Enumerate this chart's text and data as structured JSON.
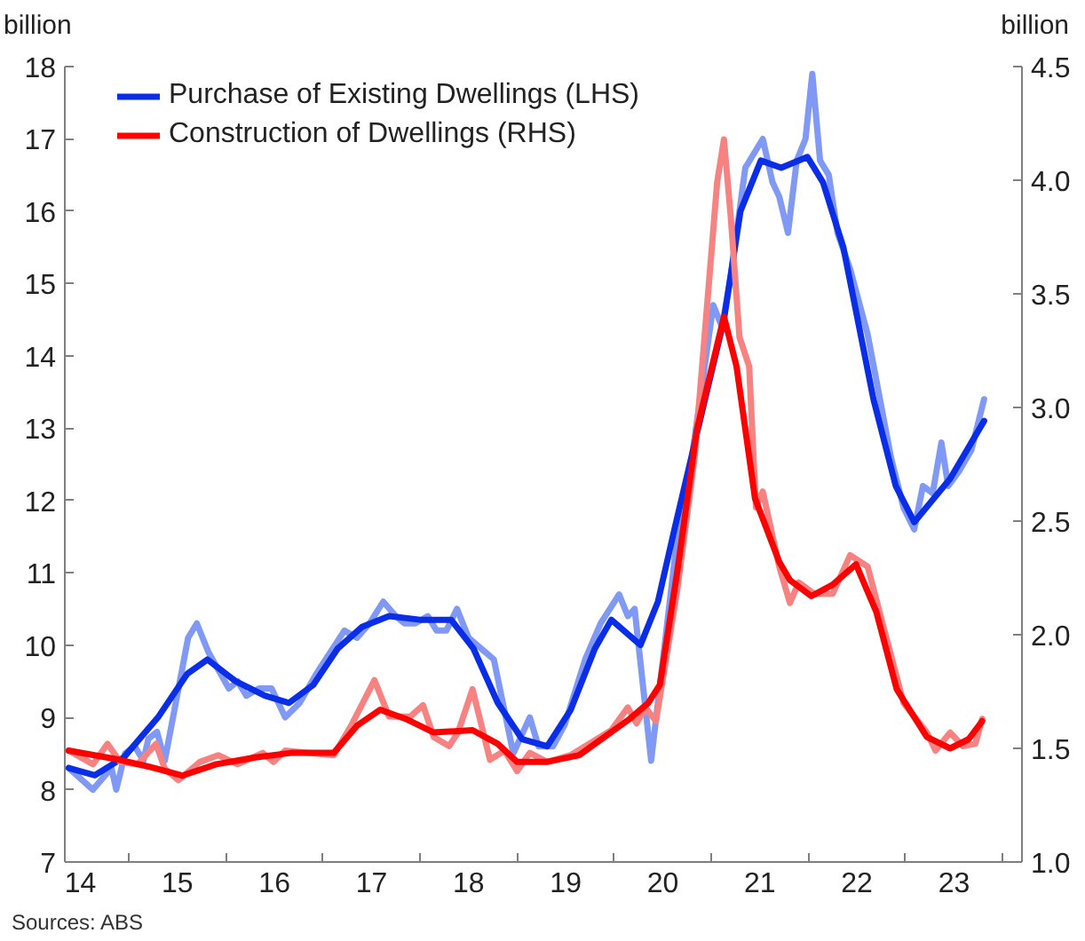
{
  "chart_data": {
    "type": "line",
    "ylabel": "billion",
    "y2label": "billion",
    "annotations": [
      "Sources: ABS"
    ],
    "legend": "top left",
    "xlim": [
      13.84,
      23.7
    ],
    "xticks": [
      14,
      {
        "value": 14.5,
        "label": null
      },
      15,
      {
        "value": 15.5,
        "label": null
      },
      16,
      {
        "value": 16.5,
        "label": null
      },
      17,
      {
        "value": 17.5,
        "label": null
      },
      18,
      {
        "value": 18.5,
        "label": null
      },
      19,
      {
        "value": 19.5,
        "label": null
      },
      20,
      {
        "value": 20.5,
        "label": null
      },
      21,
      {
        "value": 21.5,
        "label": null
      },
      22,
      {
        "value": 22.5,
        "label": null
      },
      23,
      {
        "value": 23.5,
        "label": null
      }
    ],
    "ylim": [
      7,
      18
    ],
    "yticks": [
      7,
      8,
      9,
      10,
      11,
      12,
      13,
      14,
      15,
      16,
      17,
      18
    ],
    "y2lim": [
      1.0,
      4.5
    ],
    "y2ticks": [
      {
        "value": 1.0,
        "label": "1.0"
      },
      1.5,
      {
        "value": 2.0,
        "label": "2.0"
      },
      2.5,
      {
        "value": 3.0,
        "label": "3.0"
      },
      3.5,
      {
        "value": 4.0,
        "label": "4.0"
      },
      4.5
    ],
    "series": [
      {
        "color": "#7f99f5",
        "x": [
          13.88,
          14.13,
          14.32,
          14.37,
          14.46,
          14.56,
          14.65,
          14.7,
          14.79,
          14.87,
          15.11,
          15.2,
          15.32,
          15.53,
          15.62,
          15.71,
          15.84,
          15.97,
          16.11,
          16.26,
          16.43,
          16.72,
          16.85,
          16.98,
          17.12,
          17.25,
          17.34,
          17.45,
          17.58,
          17.67,
          17.77,
          17.88,
          18.0,
          18.26,
          18.46,
          18.63,
          18.72,
          18.87,
          18.99,
          19.2,
          19.36,
          19.55,
          19.64,
          19.71,
          19.88,
          20.15,
          20.3,
          20.52,
          20.61,
          20.7,
          20.85,
          21.03,
          21.13,
          21.2,
          21.29,
          21.38,
          21.47,
          21.54,
          21.62,
          21.71,
          21.8,
          21.93,
          22.11,
          22.35,
          22.48,
          22.59,
          22.68,
          22.78,
          22.87,
          22.94,
          23.05,
          23.18,
          23.31
        ],
        "values": [
          8.3,
          8.0,
          8.3,
          8.0,
          8.5,
          8.6,
          8.4,
          8.7,
          8.8,
          8.4,
          10.1,
          10.3,
          9.9,
          9.4,
          9.5,
          9.3,
          9.4,
          9.4,
          9.0,
          9.2,
          9.6,
          10.2,
          10.1,
          10.3,
          10.6,
          10.4,
          10.3,
          10.3,
          10.4,
          10.2,
          10.2,
          10.5,
          10.1,
          9.8,
          8.5,
          9.0,
          8.6,
          8.6,
          8.9,
          9.8,
          10.3,
          10.7,
          10.4,
          10.5,
          8.4,
          11.5,
          12.6,
          14.7,
          14.4,
          15.1,
          16.6,
          17.0,
          16.4,
          16.2,
          15.7,
          16.7,
          17.0,
          17.9,
          16.7,
          16.5,
          15.7,
          15.2,
          14.3,
          12.6,
          11.9,
          11.6,
          12.2,
          12.1,
          12.8,
          12.2,
          12.4,
          12.7,
          13.4
        ]
      },
      {
        "name": "Purchase of Existing Dwellings (LHS)",
        "color": "#0a2ee8",
        "x": [
          13.88,
          14.15,
          14.45,
          14.8,
          15.1,
          15.31,
          15.6,
          15.9,
          16.15,
          16.4,
          16.65,
          16.9,
          17.18,
          17.5,
          17.82,
          18.05,
          18.3,
          18.55,
          18.81,
          19.05,
          19.3,
          19.47,
          19.77,
          19.95,
          20.12,
          20.4,
          20.63,
          20.8,
          21.01,
          21.22,
          21.49,
          21.65,
          21.86,
          22.17,
          22.4,
          22.59,
          22.96,
          23.31
        ],
        "values": [
          8.3,
          8.2,
          8.45,
          9.0,
          9.6,
          9.8,
          9.5,
          9.3,
          9.2,
          9.45,
          9.95,
          10.25,
          10.4,
          10.35,
          10.35,
          9.95,
          9.2,
          8.7,
          8.6,
          9.1,
          9.95,
          10.35,
          10.0,
          10.6,
          11.6,
          13.2,
          14.5,
          16.0,
          16.7,
          16.6,
          16.75,
          16.4,
          15.5,
          13.4,
          12.2,
          11.7,
          12.3,
          13.1
        ]
      },
      {
        "color": "#f78282",
        "axis": "y2",
        "x": [
          13.88,
          14.13,
          14.28,
          14.41,
          14.59,
          14.78,
          14.87,
          15.01,
          15.23,
          15.42,
          15.62,
          15.88,
          15.99,
          16.11,
          16.35,
          16.61,
          16.79,
          17.03,
          17.18,
          17.4,
          17.53,
          17.64,
          17.8,
          17.89,
          18.04,
          18.22,
          18.37,
          18.5,
          18.63,
          18.81,
          19.05,
          19.47,
          19.64,
          19.73,
          19.82,
          19.93,
          20.15,
          20.33,
          20.56,
          20.63,
          20.7,
          20.79,
          20.89,
          20.96,
          21.03,
          21.2,
          21.31,
          21.4,
          21.56,
          21.75,
          21.93,
          22.11,
          22.48,
          22.72,
          22.81,
          22.96,
          23.09,
          23.22,
          23.29
        ],
        "values": [
          1.49,
          1.43,
          1.52,
          1.44,
          1.43,
          1.52,
          1.41,
          1.36,
          1.44,
          1.47,
          1.43,
          1.48,
          1.44,
          1.49,
          1.48,
          1.47,
          1.6,
          1.8,
          1.64,
          1.64,
          1.69,
          1.55,
          1.51,
          1.57,
          1.76,
          1.45,
          1.49,
          1.4,
          1.48,
          1.44,
          1.47,
          1.58,
          1.68,
          1.61,
          1.68,
          1.62,
          2.2,
          2.79,
          3.99,
          4.18,
          3.84,
          3.31,
          3.18,
          2.56,
          2.63,
          2.3,
          2.14,
          2.23,
          2.18,
          2.18,
          2.35,
          2.3,
          1.7,
          1.57,
          1.49,
          1.57,
          1.51,
          1.52,
          1.63
        ]
      },
      {
        "name": "Construction of Dwellings (RHS)",
        "color": "#ff0000",
        "axis": "y2",
        "x": [
          13.88,
          14.4,
          14.7,
          15.05,
          15.4,
          15.8,
          16.17,
          16.61,
          16.85,
          17.09,
          17.35,
          17.64,
          18.04,
          18.3,
          18.5,
          18.8,
          19.14,
          19.4,
          19.66,
          19.85,
          19.97,
          20.15,
          20.35,
          20.63,
          20.76,
          20.95,
          21.2,
          21.31,
          21.53,
          21.75,
          21.99,
          22.2,
          22.41,
          22.72,
          22.96,
          23.15,
          23.29
        ],
        "values": [
          1.49,
          1.45,
          1.42,
          1.38,
          1.43,
          1.46,
          1.48,
          1.48,
          1.6,
          1.67,
          1.63,
          1.57,
          1.58,
          1.52,
          1.44,
          1.44,
          1.47,
          1.55,
          1.63,
          1.7,
          1.78,
          2.28,
          2.9,
          3.4,
          3.18,
          2.6,
          2.32,
          2.24,
          2.17,
          2.22,
          2.31,
          2.1,
          1.76,
          1.55,
          1.5,
          1.54,
          1.62
        ]
      }
    ]
  }
}
